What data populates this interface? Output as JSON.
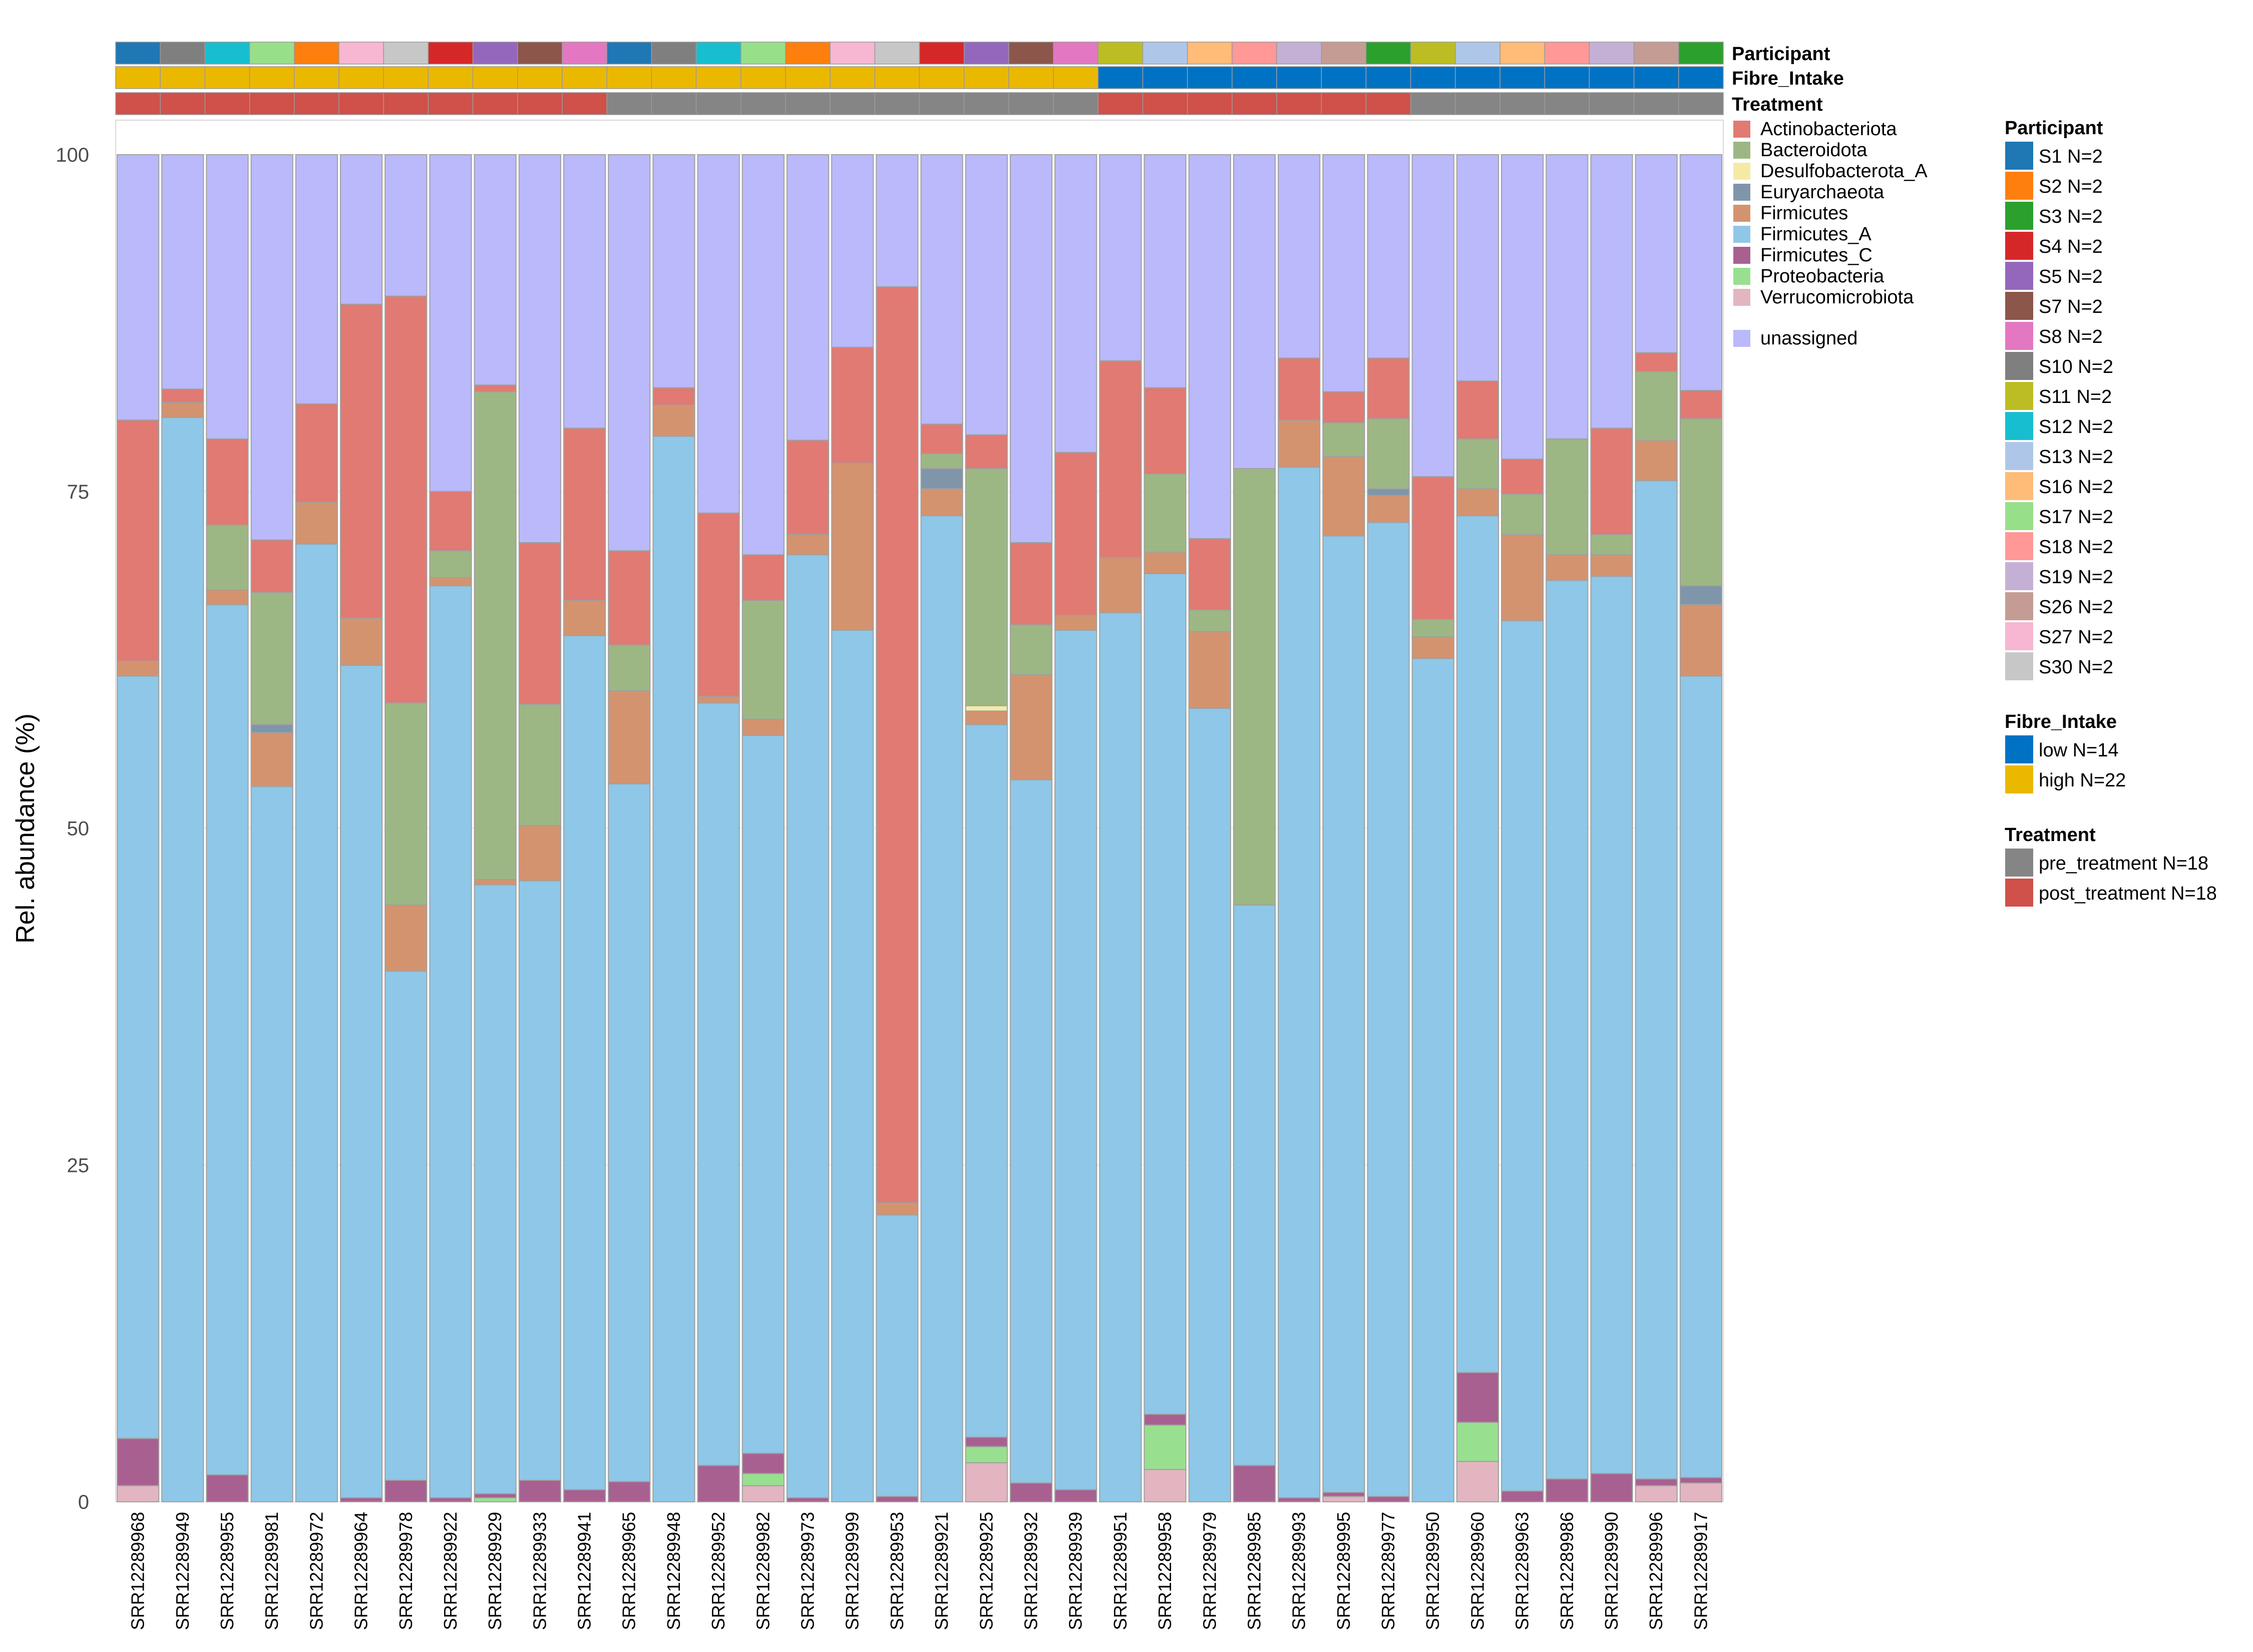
{
  "chart_data": {
    "type": "bar",
    "stacked": true,
    "ylabel": "Rel. abundance (%)",
    "xlabel": "",
    "ylim": [
      0,
      100
    ],
    "yticks": [
      0,
      25,
      50,
      75,
      100
    ],
    "grid": true,
    "legend_placement": "right",
    "taxa": [
      "Actinobacteriota",
      "Bacteroidota",
      "Desulfobacterota_A",
      "Euryarchaeota",
      "Firmicutes",
      "Firmicutes_A",
      "Firmicutes_C",
      "Proteobacteria",
      "Verrucomicrobiota",
      "unassigned"
    ],
    "taxa_colors": {
      "Actinobacteriota": "#e07a72",
      "Bacteroidota": "#9db784",
      "Desulfobacterota_A": "#f5eaa5",
      "Euryarchaeota": "#7f96aa",
      "Firmicutes": "#d4936f",
      "Firmicutes_A": "#8ec7e7",
      "Firmicutes_C": "#a86090",
      "Proteobacteria": "#98e08f",
      "Verrucomicrobiota": "#e2b5c1",
      "unassigned": "#b9b9fb"
    },
    "samples": [
      {
        "id": "SRR12289968",
        "participant": "S1",
        "fibre": "high",
        "treatment": "post",
        "values": [
          17.9,
          0,
          0,
          0,
          1.1,
          56.6,
          3.5,
          0,
          1.2,
          19.7
        ]
      },
      {
        "id": "SRR12289949",
        "participant": "S10",
        "fibre": "high",
        "treatment": "post",
        "values": [
          1.0,
          0,
          0,
          0,
          1.1,
          80.5,
          0,
          0,
          0,
          17.4
        ]
      },
      {
        "id": "SRR12289955",
        "participant": "S12",
        "fibre": "high",
        "treatment": "post",
        "values": [
          6.4,
          4.8,
          0,
          0,
          1.1,
          64.6,
          2.0,
          0,
          0,
          21.1
        ]
      },
      {
        "id": "SRR12289981",
        "participant": "S17",
        "fibre": "high",
        "treatment": "post",
        "values": [
          3.9,
          9.8,
          0,
          0.6,
          4.0,
          53.1,
          0,
          0,
          0,
          28.6
        ]
      },
      {
        "id": "SRR12289972",
        "participant": "S2",
        "fibre": "high",
        "treatment": "post",
        "values": [
          7.3,
          0,
          0,
          0,
          3.1,
          71.1,
          0,
          0,
          0,
          18.5
        ]
      },
      {
        "id": "SRR12289964",
        "participant": "S27",
        "fibre": "high",
        "treatment": "post",
        "values": [
          23.3,
          0,
          0,
          0,
          3.5,
          61.8,
          0.3,
          0,
          0,
          11.1
        ]
      },
      {
        "id": "SRR12289978",
        "participant": "S30",
        "fibre": "high",
        "treatment": "post",
        "values": [
          30.2,
          15.0,
          0,
          0,
          4.9,
          37.8,
          1.6,
          0,
          0,
          10.5
        ]
      },
      {
        "id": "SRR12289922",
        "participant": "S4",
        "fibre": "high",
        "treatment": "post",
        "values": [
          4.4,
          2.0,
          0,
          0,
          0.6,
          67.7,
          0.3,
          0,
          0,
          25.0
        ]
      },
      {
        "id": "SRR12289929",
        "participant": "S5",
        "fibre": "high",
        "treatment": "post",
        "values": [
          0.5,
          36.2,
          0,
          0,
          0.4,
          45.2,
          0.3,
          0.3,
          0,
          17.1
        ]
      },
      {
        "id": "SRR12289933",
        "participant": "S7",
        "fibre": "high",
        "treatment": "post",
        "values": [
          12.0,
          9.0,
          0,
          0,
          4.1,
          44.5,
          1.6,
          0,
          0,
          28.8
        ]
      },
      {
        "id": "SRR12289941",
        "participant": "S8",
        "fibre": "high",
        "treatment": "post",
        "values": [
          12.8,
          0,
          0,
          0,
          2.6,
          63.4,
          0.9,
          0,
          0,
          20.3
        ]
      },
      {
        "id": "SRR12289965",
        "participant": "S1",
        "fibre": "high",
        "treatment": "pre",
        "values": [
          7.0,
          3.4,
          0,
          0,
          6.9,
          51.8,
          1.5,
          0,
          0,
          29.4
        ]
      },
      {
        "id": "SRR12289948",
        "participant": "S10",
        "fibre": "high",
        "treatment": "pre",
        "values": [
          1.3,
          0,
          0,
          0,
          2.3,
          79.1,
          0,
          0,
          0,
          17.3
        ]
      },
      {
        "id": "SRR12289952",
        "participant": "S12",
        "fibre": "high",
        "treatment": "pre",
        "values": [
          13.6,
          0,
          0,
          0,
          0.5,
          56.6,
          2.7,
          0,
          0,
          26.6
        ]
      },
      {
        "id": "SRR12289982",
        "participant": "S17",
        "fibre": "high",
        "treatment": "pre",
        "values": [
          3.4,
          8.8,
          0,
          0,
          1.2,
          53.3,
          1.5,
          0.9,
          1.2,
          29.7
        ]
      },
      {
        "id": "SRR12289973",
        "participant": "S2",
        "fibre": "high",
        "treatment": "pre",
        "values": [
          7.0,
          0,
          0,
          0,
          1.5,
          70.0,
          0.3,
          0,
          0,
          21.2
        ]
      },
      {
        "id": "SRR12289999",
        "participant": "S27",
        "fibre": "high",
        "treatment": "pre",
        "values": [
          8.6,
          0,
          0,
          0,
          12.4,
          64.7,
          0,
          0,
          0,
          14.3
        ]
      },
      {
        "id": "SRR12289953",
        "participant": "S30",
        "fibre": "high",
        "treatment": "pre",
        "values": [
          68.0,
          0,
          0,
          0,
          0.9,
          20.9,
          0.4,
          0,
          0,
          9.8
        ]
      },
      {
        "id": "SRR12289921",
        "participant": "S4",
        "fibre": "high",
        "treatment": "pre",
        "values": [
          2.2,
          1.1,
          0,
          1.5,
          2.0,
          73.2,
          0,
          0,
          0,
          20.0
        ]
      },
      {
        "id": "SRR12289925",
        "participant": "S5",
        "fibre": "high",
        "treatment": "pre",
        "values": [
          2.5,
          17.6,
          0.4,
          0,
          1.0,
          52.9,
          0.7,
          1.2,
          2.9,
          20.8
        ]
      },
      {
        "id": "SRR12289932",
        "participant": "S7",
        "fibre": "high",
        "treatment": "pre",
        "values": [
          6.1,
          3.7,
          0,
          0,
          7.8,
          52.2,
          1.4,
          0,
          0,
          28.8
        ]
      },
      {
        "id": "SRR12289939",
        "participant": "S8",
        "fibre": "high",
        "treatment": "pre",
        "values": [
          12.1,
          0,
          0,
          0,
          1.1,
          63.8,
          0.9,
          0,
          0,
          22.1
        ]
      },
      {
        "id": "SRR12289951",
        "participant": "S11",
        "fibre": "low",
        "treatment": "post",
        "values": [
          14.6,
          0,
          0,
          0,
          4.1,
          66.0,
          0,
          0,
          0,
          15.3
        ]
      },
      {
        "id": "SRR12289958",
        "participant": "S13",
        "fibre": "low",
        "treatment": "post",
        "values": [
          6.4,
          5.8,
          0,
          0,
          1.6,
          62.4,
          0.8,
          3.3,
          2.4,
          17.3
        ]
      },
      {
        "id": "SRR12289979",
        "participant": "S16",
        "fibre": "low",
        "treatment": "post",
        "values": [
          5.3,
          1.6,
          0,
          0,
          5.7,
          58.9,
          0,
          0,
          0,
          28.5
        ]
      },
      {
        "id": "SRR12289985",
        "participant": "S18",
        "fibre": "low",
        "treatment": "post",
        "values": [
          0,
          32.4,
          0,
          0,
          0,
          41.6,
          2.7,
          0,
          0,
          23.3
        ]
      },
      {
        "id": "SRR12289993",
        "participant": "S19",
        "fibre": "low",
        "treatment": "post",
        "values": [
          4.6,
          0,
          0,
          0,
          3.5,
          76.5,
          0.3,
          0,
          0,
          15.1
        ]
      },
      {
        "id": "SRR12289995",
        "participant": "S26",
        "fibre": "low",
        "treatment": "post",
        "values": [
          2.3,
          2.5,
          0,
          0,
          5.9,
          71.0,
          0.3,
          0,
          0.4,
          17.6
        ]
      },
      {
        "id": "SRR12289977",
        "participant": "S3",
        "fibre": "low",
        "treatment": "post",
        "values": [
          4.5,
          5.2,
          0,
          0.5,
          2.0,
          72.3,
          0.4,
          0,
          0,
          15.1
        ]
      },
      {
        "id": "SRR12289950",
        "participant": "S11",
        "fibre": "low",
        "treatment": "pre",
        "values": [
          10.6,
          1.3,
          0,
          0,
          1.6,
          62.6,
          0,
          0,
          0,
          23.9
        ]
      },
      {
        "id": "SRR12289960",
        "participant": "S13",
        "fibre": "low",
        "treatment": "pre",
        "values": [
          4.3,
          3.7,
          0,
          0,
          2.0,
          63.6,
          3.7,
          2.9,
          3.0,
          16.8
        ]
      },
      {
        "id": "SRR12289963",
        "participant": "S16",
        "fibre": "low",
        "treatment": "pre",
        "values": [
          2.6,
          3.0,
          0,
          0,
          6.4,
          64.6,
          0.8,
          0,
          0,
          22.6
        ]
      },
      {
        "id": "SRR12289986",
        "participant": "S18",
        "fibre": "low",
        "treatment": "pre",
        "values": [
          0,
          8.6,
          0,
          0,
          1.9,
          66.7,
          1.7,
          0,
          0,
          21.1
        ]
      },
      {
        "id": "SRR12289990",
        "participant": "S19",
        "fibre": "low",
        "treatment": "pre",
        "values": [
          7.9,
          1.5,
          0,
          0,
          1.6,
          66.6,
          2.1,
          0,
          0,
          20.3
        ]
      },
      {
        "id": "SRR12289996",
        "participant": "S26",
        "fibre": "low",
        "treatment": "pre",
        "values": [
          1.4,
          5.1,
          0,
          0,
          3.0,
          74.1,
          0.5,
          0,
          1.2,
          14.7
        ]
      },
      {
        "id": "SRR12289917",
        "participant": "S3",
        "fibre": "low",
        "treatment": "pre",
        "values": [
          2.1,
          12.4,
          0,
          1.4,
          5.3,
          59.5,
          0.4,
          0,
          1.4,
          17.5
        ]
      }
    ],
    "annotation_tracks": [
      "Participant",
      "Fibre_Intake",
      "Treatment"
    ],
    "legends": [
      {
        "title": "Participant",
        "items": [
          {
            "key": "S1",
            "label": "S1 N=2",
            "color": "#1f77b4"
          },
          {
            "key": "S2",
            "label": "S2 N=2",
            "color": "#ff7f0e"
          },
          {
            "key": "S3",
            "label": "S3 N=2",
            "color": "#2ca02c"
          },
          {
            "key": "S4",
            "label": "S4 N=2",
            "color": "#d62728"
          },
          {
            "key": "S5",
            "label": "S5 N=2",
            "color": "#9467bd"
          },
          {
            "key": "S7",
            "label": "S7 N=2",
            "color": "#8c564b"
          },
          {
            "key": "S8",
            "label": "S8 N=2",
            "color": "#e377c2"
          },
          {
            "key": "S10",
            "label": "S10 N=2",
            "color": "#7f7f7f"
          },
          {
            "key": "S11",
            "label": "S11 N=2",
            "color": "#bcbd22"
          },
          {
            "key": "S12",
            "label": "S12 N=2",
            "color": "#17becf"
          },
          {
            "key": "S13",
            "label": "S13 N=2",
            "color": "#aec7e8"
          },
          {
            "key": "S16",
            "label": "S16 N=2",
            "color": "#ffbb78"
          },
          {
            "key": "S17",
            "label": "S17 N=2",
            "color": "#98df8a"
          },
          {
            "key": "S18",
            "label": "S18 N=2",
            "color": "#ff9896"
          },
          {
            "key": "S19",
            "label": "S19 N=2",
            "color": "#c5b0d5"
          },
          {
            "key": "S26",
            "label": "S26 N=2",
            "color": "#c49c94"
          },
          {
            "key": "S27",
            "label": "S27 N=2",
            "color": "#f7b6d2"
          },
          {
            "key": "S30",
            "label": "S30 N=2",
            "color": "#c7c7c7"
          }
        ]
      },
      {
        "title": "Fibre_Intake",
        "items": [
          {
            "key": "low",
            "label": "low N=14",
            "color": "#0072c4"
          },
          {
            "key": "high",
            "label": "high N=22",
            "color": "#ebb800"
          }
        ]
      },
      {
        "title": "Treatment",
        "items": [
          {
            "key": "pre",
            "label": "pre_treatment N=18",
            "color": "#858585"
          },
          {
            "key": "post",
            "label": "post_treatment N=18",
            "color": "#d0504a"
          }
        ]
      }
    ]
  }
}
